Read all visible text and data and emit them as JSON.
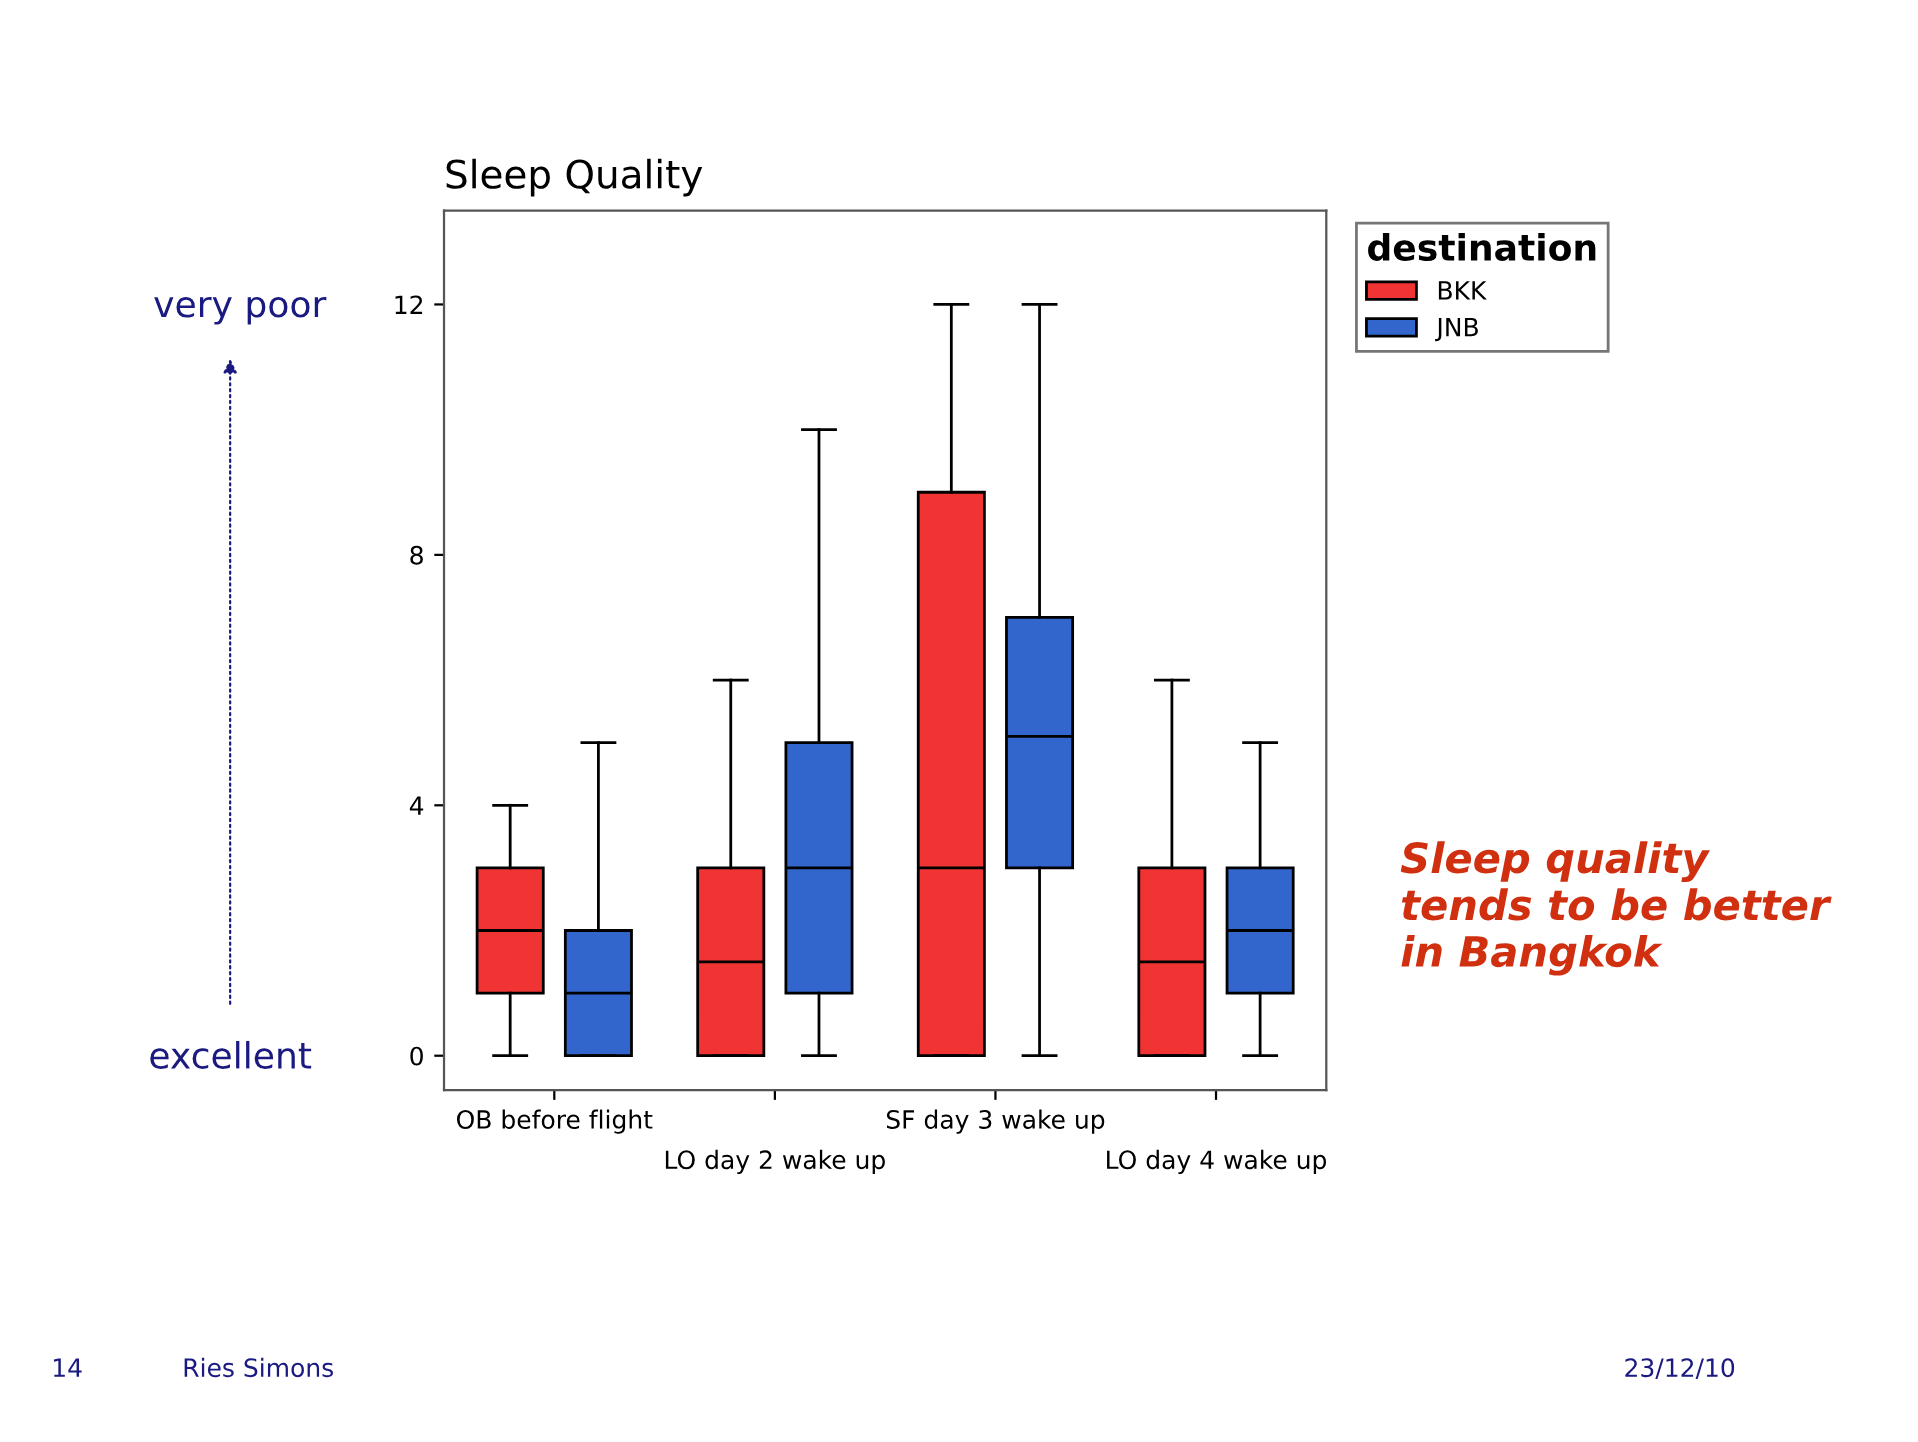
{
  "chart_data": {
    "type": "box",
    "title": "Sleep Quality",
    "legend_title": "destination",
    "legend": "top right",
    "grid": false,
    "categories": [
      "OB before flight",
      "LO day 2 wake up",
      "SF day 3 wake up",
      "LO day 4 wake up"
    ],
    "ylim": [
      -0.55,
      13.5
    ],
    "yticks": [
      0,
      4,
      8,
      12
    ],
    "series": [
      {
        "name": "BKK",
        "color": "#f03434",
        "boxes": [
          {
            "low": 0,
            "q1": 1,
            "median": 2,
            "q3": 3,
            "high": 4
          },
          {
            "low": 0,
            "q1": 0,
            "median": 1.5,
            "q3": 3,
            "high": 6
          },
          {
            "low": 0,
            "q1": 0,
            "median": 3,
            "q3": 9,
            "high": 12
          },
          {
            "low": 0,
            "q1": 0,
            "median": 1.5,
            "q3": 3,
            "high": 6
          }
        ]
      },
      {
        "name": "JNB",
        "color": "#3366cc",
        "boxes": [
          {
            "low": 0,
            "q1": 0,
            "median": 1,
            "q3": 2,
            "high": 5
          },
          {
            "low": 0,
            "q1": 1,
            "median": 3,
            "q3": 5,
            "high": 10
          },
          {
            "low": 0,
            "q1": 3,
            "median": 5.1,
            "q3": 7,
            "high": 12
          },
          {
            "low": 0,
            "q1": 1,
            "median": 2,
            "q3": 3,
            "high": 5
          }
        ]
      }
    ],
    "annotations": [
      "very poor",
      "excellent",
      "Sleep quality tends to be better in Bangkok",
      "14",
      "Ries Simons",
      "23/12/10"
    ]
  }
}
